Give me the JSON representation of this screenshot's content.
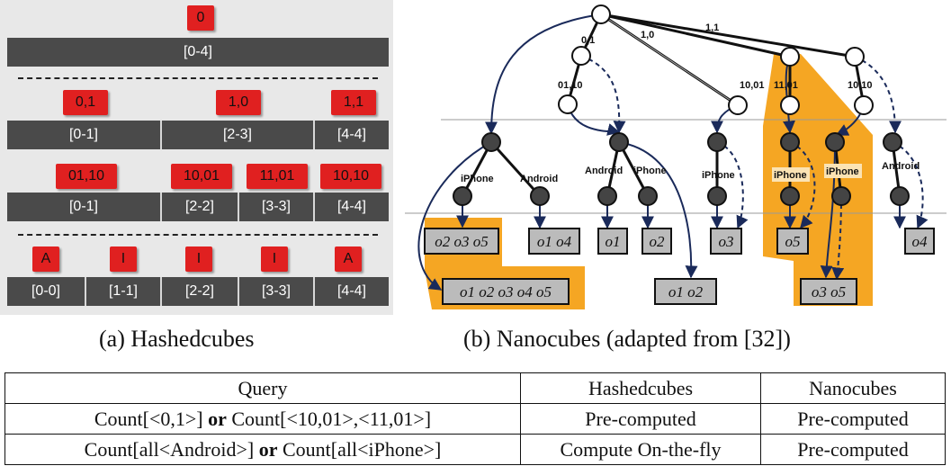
{
  "panel_a": {
    "caption": "(a) Hashedcubes",
    "level0": {
      "keys": [
        "0"
      ],
      "cells": [
        "[0-4]"
      ]
    },
    "level1": {
      "keys": [
        "0,1",
        "1,0",
        "1,1"
      ],
      "cells": [
        "[0-1]",
        "[2-3]",
        "[4-4]"
      ]
    },
    "level2": {
      "keys": [
        "01,10",
        "10,01",
        "11,01",
        "10,10"
      ],
      "cells": [
        "[0-1]",
        "[2-2]",
        "[3-3]",
        "[4-4]"
      ]
    },
    "level3": {
      "keys": [
        "A",
        "I",
        "I",
        "I",
        "A"
      ],
      "cells": [
        "[0-0]",
        "[1-1]",
        "[2-2]",
        "[3-3]",
        "[4-4]"
      ]
    }
  },
  "panel_b": {
    "caption": "(b) Nanocubes (adapted from [32])",
    "edge_labels": [
      "0,1",
      "1,0",
      "1,1",
      "01,10",
      "10,01",
      "11,01",
      "10,10"
    ],
    "category_labels": [
      "iPhone",
      "Android",
      "Android",
      "iPhone",
      "iPhone",
      "iPhone",
      "iPhone",
      "Android"
    ],
    "leaf_boxes": [
      "o2 o3 o5",
      "o1 o4",
      "o1",
      "o2",
      "o3",
      "o5",
      "o4",
      "o1 o2 o3 o4 o5",
      "o1 o2",
      "o3 o5"
    ]
  },
  "table": {
    "headers": [
      "Query",
      "Hashedcubes",
      "Nanocubes"
    ],
    "rows": [
      {
        "query_a": "Count[<0,1>]",
        "or": "or",
        "query_b": "Count[<10,01>,<11,01>]",
        "hashedcubes": "Pre-computed",
        "nanocubes": "Pre-computed"
      },
      {
        "query_a": "Count[all<Android>]",
        "or": "or",
        "query_b": "Count[all<iPhone>]",
        "hashedcubes": "Compute On-the-fly",
        "nanocubes": "Pre-computed"
      }
    ]
  },
  "colors": {
    "key_red": "#e02020",
    "bar_gray": "#4a4a4a",
    "highlight_orange": "#f5a623",
    "arrow_navy": "#1a2a5a"
  }
}
